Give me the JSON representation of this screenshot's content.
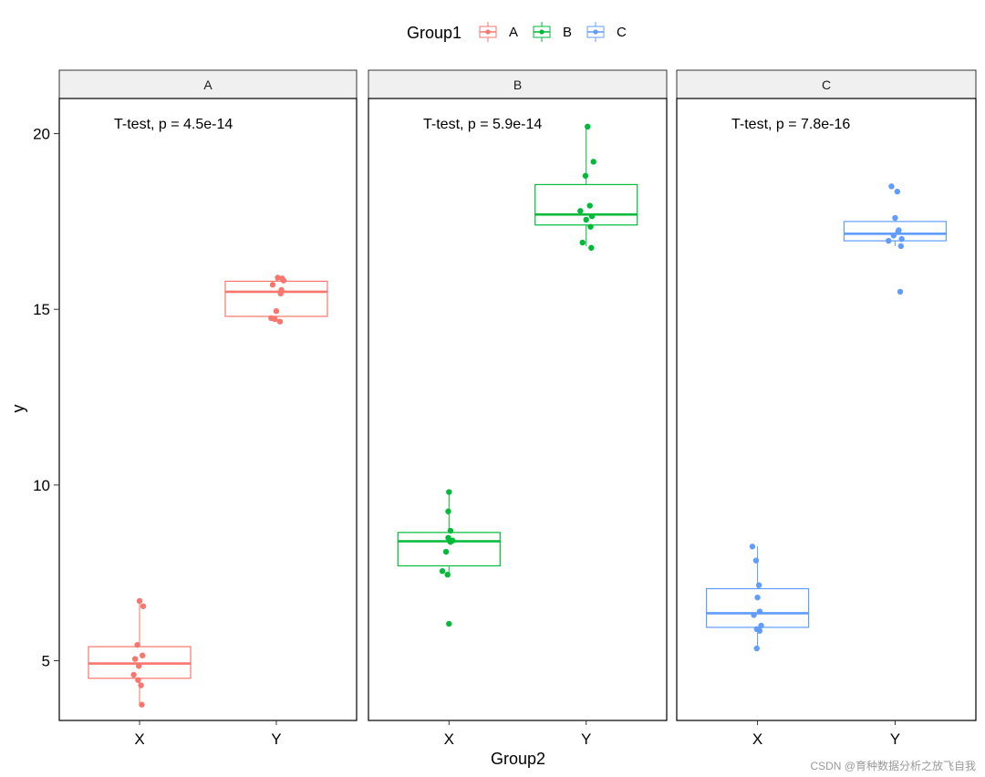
{
  "chart_data": {
    "type": "boxplot",
    "xlabel": "Group2",
    "ylabel": "y",
    "ylim": [
      3.3,
      21.0
    ],
    "yticks": [
      5,
      10,
      15,
      20
    ],
    "categories": [
      "X",
      "Y"
    ],
    "legend": {
      "title": "Group1",
      "position": "top",
      "entries": [
        {
          "label": "A",
          "color": "#F8766D"
        },
        {
          "label": "B",
          "color": "#00BA38"
        },
        {
          "label": "C",
          "color": "#619CFF"
        }
      ]
    },
    "facets": [
      {
        "label": "A",
        "color": "#F8766D",
        "annotation": "T-test, p = 4.5e-14",
        "boxes": [
          {
            "category": "X",
            "q1": 4.5,
            "median": 4.92,
            "q3": 5.4,
            "whisker_low": 3.75,
            "whisker_high": 6.7,
            "points": [
              6.7,
              6.55,
              5.45,
              5.15,
              5.05,
              4.85,
              4.6,
              4.45,
              4.3,
              3.75
            ],
            "jitter": [
              0,
              0.05,
              -0.03,
              0.04,
              -0.06,
              -0.01,
              -0.08,
              -0.02,
              0.02,
              0.03
            ]
          },
          {
            "category": "Y",
            "q1": 14.8,
            "median": 15.5,
            "q3": 15.8,
            "whisker_low": 14.65,
            "whisker_high": 15.9,
            "points": [
              15.9,
              15.88,
              15.82,
              15.7,
              15.55,
              15.45,
              14.95,
              14.75,
              14.72,
              14.65
            ],
            "jitter": [
              0.02,
              0.08,
              0.1,
              -0.05,
              0.07,
              0.06,
              0.0,
              -0.07,
              -0.02,
              0.05
            ]
          }
        ]
      },
      {
        "label": "B",
        "color": "#00BA38",
        "annotation": "T-test, p = 5.9e-14",
        "boxes": [
          {
            "category": "X",
            "q1": 7.7,
            "median": 8.4,
            "q3": 8.65,
            "whisker_low": 7.45,
            "whisker_high": 9.8,
            "points": [
              9.8,
              9.25,
              8.7,
              8.5,
              8.42,
              8.38,
              8.1,
              7.55,
              7.45,
              6.05
            ],
            "jitter": [
              0.0,
              -0.01,
              0.02,
              -0.01,
              0.05,
              0.02,
              -0.04,
              -0.09,
              -0.02,
              0.0
            ]
          },
          {
            "category": "Y",
            "q1": 17.4,
            "median": 17.7,
            "q3": 18.55,
            "whisker_low": 16.8,
            "whisker_high": 20.2,
            "points": [
              20.2,
              19.2,
              18.8,
              17.95,
              17.8,
              17.65,
              17.55,
              17.35,
              16.9,
              16.75
            ],
            "jitter": [
              0.02,
              0.1,
              -0.01,
              0.05,
              -0.08,
              0.08,
              0.0,
              0.06,
              -0.05,
              0.07
            ]
          }
        ]
      },
      {
        "label": "C",
        "color": "#619CFF",
        "annotation": "T-test, p = 7.8e-16",
        "boxes": [
          {
            "category": "X",
            "q1": 5.95,
            "median": 6.35,
            "q3": 7.05,
            "whisker_low": 5.3,
            "whisker_high": 8.25,
            "points": [
              8.25,
              7.85,
              7.15,
              6.8,
              6.4,
              6.3,
              6.0,
              5.9,
              5.85,
              5.35
            ],
            "jitter": [
              -0.07,
              -0.02,
              0.02,
              0.0,
              0.03,
              -0.05,
              0.05,
              -0.01,
              0.03,
              -0.01
            ]
          },
          {
            "category": "Y",
            "q1": 16.95,
            "median": 17.15,
            "q3": 17.5,
            "whisker_low": 16.8,
            "whisker_high": 17.5,
            "points": [
              18.5,
              18.35,
              17.6,
              17.25,
              17.2,
              17.1,
              17.0,
              16.95,
              16.8,
              15.5
            ],
            "jitter": [
              -0.05,
              0.03,
              0.0,
              0.05,
              0.04,
              -0.02,
              0.09,
              -0.09,
              0.08,
              0.07
            ]
          }
        ]
      }
    ]
  },
  "watermark": "CSDN @育种数据分析之放飞自我"
}
